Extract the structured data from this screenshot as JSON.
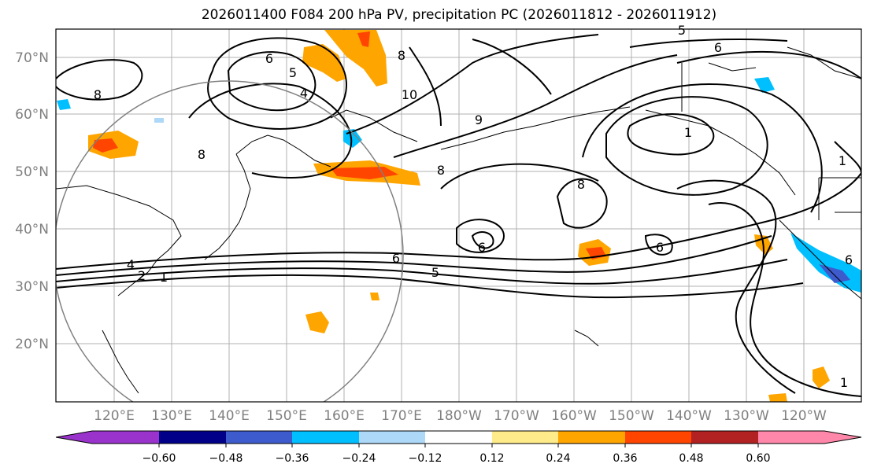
{
  "title": "2026011400 F084 200 hPa PV, precipitation PC (2026011812 - 2026011912)",
  "lat_labels": [
    "70°N",
    "60°N",
    "50°N",
    "40°N",
    "30°N",
    "20°N"
  ],
  "lon_labels": [
    "120°E",
    "130°E",
    "140°E",
    "150°E",
    "160°E",
    "170°E",
    "180°W",
    "170°W",
    "160°W",
    "150°W",
    "140°W",
    "130°W",
    "120°W"
  ],
  "contour_labels": [
    "6",
    "5",
    "4",
    "8",
    "8",
    "10",
    "9",
    "8",
    "6",
    "5",
    "1",
    "8",
    "6",
    "6",
    "4",
    "2",
    "1",
    "6",
    "5",
    "1",
    "1",
    "8",
    "6"
  ],
  "colorbar": {
    "ticks": [
      "−0.60",
      "−0.48",
      "−0.36",
      "−0.24",
      "−0.12",
      "0.12",
      "0.24",
      "0.36",
      "0.48",
      "0.60"
    ],
    "colors": [
      "#9933cc",
      "#000088",
      "#3d5bcc",
      "#00bfff",
      "#add8f7",
      "#ffffff",
      "#ffeb8a",
      "#ffa500",
      "#ff4500",
      "#b22222",
      "#ff88aa"
    ]
  }
}
